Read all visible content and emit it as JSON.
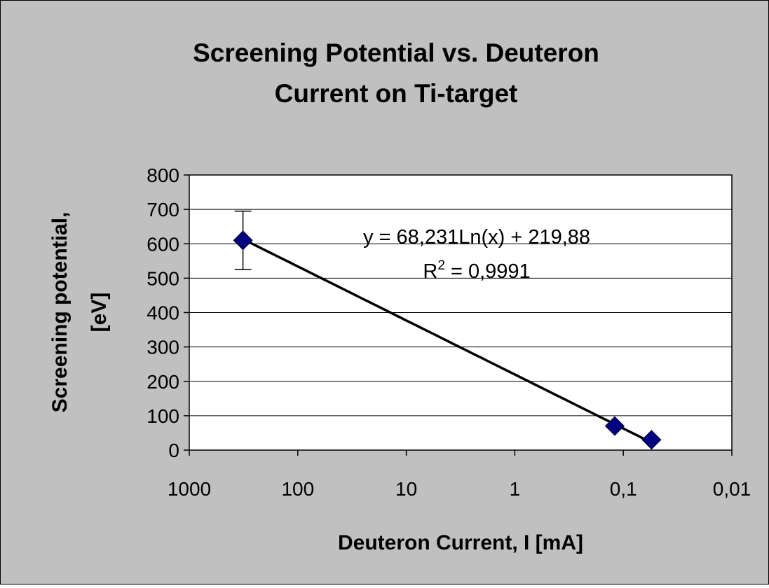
{
  "chart_data": {
    "type": "scatter",
    "title": [
      "Screening Potential vs. Deuteron",
      "Current on Ti-target"
    ],
    "xlabel": "Deuteron Current, I [mA]",
    "ylabel": [
      "Screening potential,",
      "[eV]"
    ],
    "x": [
      320,
      0.12,
      0.055
    ],
    "series": [
      {
        "name": "Screening potential",
        "color": "#000080",
        "values": [
          610,
          70,
          30
        ],
        "errors": [
          85,
          null,
          null
        ]
      }
    ],
    "xlim": [
      1000,
      0.01
    ],
    "xticks": [
      1000,
      100,
      10,
      1,
      {
        "value": 0.1,
        "label": "0,1"
      },
      {
        "value": 0.01,
        "label": "0,01"
      }
    ],
    "xscale": "log",
    "ylim": [
      0,
      800
    ],
    "yticks": [
      0,
      100,
      200,
      300,
      400,
      500,
      600,
      700,
      800
    ],
    "grid": true,
    "trendline": {
      "type": "log",
      "a": 68.231,
      "b": 219.88,
      "color": "#000000",
      "label": "y = 68,231Ln(x) + 219,88",
      "r2_label": {
        "base": "R",
        "sup": "2",
        "rest": " = 0,9991"
      }
    }
  }
}
